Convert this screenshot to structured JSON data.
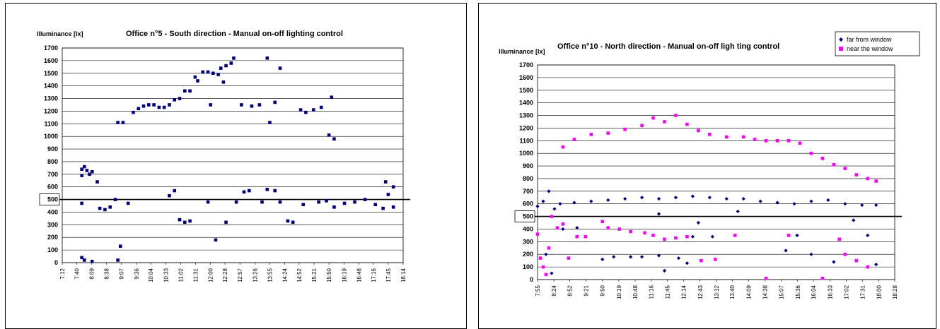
{
  "chart_data": [
    {
      "type": "scatter",
      "title": "Office n°5 - South direction - Manual on-off lighting control",
      "ylabel": "Illuminance [lx]",
      "xlabel": "",
      "ylim": [
        0,
        1700
      ],
      "ytick_step": 100,
      "grid": true,
      "threshold": 500,
      "threshold_label": "500",
      "x_ticks": [
        "7:12",
        "7:40",
        "8:09",
        "8:38",
        "9:07",
        "9:36",
        "10:04",
        "10:33",
        "11:02",
        "11:31",
        "12:00",
        "12:28",
        "12:57",
        "13:26",
        "13:55",
        "14:24",
        "14:52",
        "15:21",
        "15:50",
        "16:19",
        "16:48",
        "17:16",
        "17:45",
        "18:14"
      ],
      "legend": null,
      "series": [
        {
          "color": "#000080",
          "marker": "square",
          "points": [
            [
              "7:50",
              40
            ],
            [
              "7:50",
              470
            ],
            [
              "7:50",
              690
            ],
            [
              "7:50",
              740
            ],
            [
              "7:55",
              20
            ],
            [
              "7:55",
              760
            ],
            [
              "8:00",
              730
            ],
            [
              "8:05",
              700
            ],
            [
              "8:10",
              10
            ],
            [
              "8:10",
              720
            ],
            [
              "8:20",
              640
            ],
            [
              "8:25",
              430
            ],
            [
              "8:35",
              420
            ],
            [
              "8:45",
              440
            ],
            [
              "8:55",
              500
            ],
            [
              "9:00",
              20
            ],
            [
              "9:00",
              1110
            ],
            [
              "9:05",
              130
            ],
            [
              "9:10",
              1110
            ],
            [
              "9:20",
              470
            ],
            [
              "9:30",
              1190
            ],
            [
              "9:40",
              1220
            ],
            [
              "9:50",
              1240
            ],
            [
              "10:00",
              1250
            ],
            [
              "10:10",
              1250
            ],
            [
              "10:20",
              1230
            ],
            [
              "10:30",
              1230
            ],
            [
              "10:40",
              1250
            ],
            [
              "10:50",
              1290
            ],
            [
              "11:00",
              1300
            ],
            [
              "11:10",
              1360
            ],
            [
              "11:20",
              1360
            ],
            [
              "11:30",
              1470
            ],
            [
              "11:35",
              1440
            ],
            [
              "11:45",
              1510
            ],
            [
              "11:55",
              1510
            ],
            [
              "12:00",
              1250
            ],
            [
              "12:05",
              1500
            ],
            [
              "12:15",
              1490
            ],
            [
              "12:20",
              1540
            ],
            [
              "12:25",
              1430
            ],
            [
              "12:30",
              1560
            ],
            [
              "12:40",
              1580
            ],
            [
              "12:45",
              1620
            ],
            [
              "13:00",
              1250
            ],
            [
              "13:20",
              1240
            ],
            [
              "13:35",
              1250
            ],
            [
              "13:50",
              1620
            ],
            [
              "13:55",
              1110
            ],
            [
              "14:05",
              1270
            ],
            [
              "14:15",
              1540
            ],
            [
              "14:55",
              1210
            ],
            [
              "15:05",
              1190
            ],
            [
              "15:20",
              1210
            ],
            [
              "15:35",
              1230
            ],
            [
              "15:50",
              1010
            ],
            [
              "15:55",
              1310
            ],
            [
              "16:00",
              980
            ],
            [
              "10:40",
              530
            ],
            [
              "10:50",
              570
            ],
            [
              "11:00",
              340
            ],
            [
              "11:10",
              320
            ],
            [
              "11:20",
              330
            ],
            [
              "11:55",
              480
            ],
            [
              "12:10",
              180
            ],
            [
              "12:30",
              320
            ],
            [
              "12:50",
              480
            ],
            [
              "13:05",
              560
            ],
            [
              "13:15",
              570
            ],
            [
              "13:40",
              480
            ],
            [
              "13:50",
              580
            ],
            [
              "14:05",
              570
            ],
            [
              "14:15",
              480
            ],
            [
              "14:30",
              330
            ],
            [
              "14:40",
              320
            ],
            [
              "15:00",
              460
            ],
            [
              "15:30",
              480
            ],
            [
              "15:45",
              490
            ],
            [
              "16:00",
              440
            ],
            [
              "16:20",
              470
            ],
            [
              "16:40",
              480
            ],
            [
              "17:00",
              500
            ],
            [
              "17:20",
              460
            ],
            [
              "17:35",
              430
            ],
            [
              "17:45",
              540
            ],
            [
              "17:55",
              440
            ],
            [
              "17:55",
              600
            ],
            [
              "17:40",
              640
            ]
          ]
        }
      ]
    },
    {
      "type": "scatter",
      "title": "Office n°10 - North direction - Manual on-off ligh ting control",
      "ylabel": "Illuminance [lx]",
      "xlabel": "",
      "ylim": [
        0,
        1700
      ],
      "ytick_step": 100,
      "grid": true,
      "threshold": 500,
      "threshold_label": "500",
      "x_ticks": [
        "7:55",
        "8:24",
        "8:52",
        "9:21",
        "9:50",
        "10:19",
        "10:48",
        "11:16",
        "11:45",
        "12:14",
        "12:43",
        "13:12",
        "13:40",
        "14:09",
        "14:38",
        "15:07",
        "15:36",
        "16:04",
        "16:33",
        "17:02",
        "17:31",
        "18:00",
        "18:28"
      ],
      "legend": [
        {
          "name": "far from window",
          "color": "#000080",
          "marker": "diamond"
        },
        {
          "name": "near the window",
          "color": "#ff00ff",
          "marker": "square"
        }
      ],
      "series": [
        {
          "name": "far from window",
          "color": "#000080",
          "marker": "diamond",
          "points": [
            [
              "7:55",
              580
            ],
            [
              "8:05",
              620
            ],
            [
              "8:15",
              700
            ],
            [
              "8:25",
              560
            ],
            [
              "8:35",
              600
            ],
            [
              "9:00",
              610
            ],
            [
              "9:30",
              620
            ],
            [
              "10:00",
              630
            ],
            [
              "10:30",
              640
            ],
            [
              "11:00",
              650
            ],
            [
              "11:30",
              640
            ],
            [
              "12:00",
              650
            ],
            [
              "12:30",
              660
            ],
            [
              "13:00",
              650
            ],
            [
              "13:30",
              640
            ],
            [
              "14:00",
              640
            ],
            [
              "14:30",
              620
            ],
            [
              "15:00",
              610
            ],
            [
              "15:30",
              600
            ],
            [
              "16:00",
              620
            ],
            [
              "16:30",
              630
            ],
            [
              "17:00",
              600
            ],
            [
              "17:30",
              590
            ],
            [
              "17:55",
              590
            ],
            [
              "9:50",
              160
            ],
            [
              "10:10",
              180
            ],
            [
              "10:40",
              180
            ],
            [
              "11:00",
              180
            ],
            [
              "11:30",
              190
            ],
            [
              "11:40",
              70
            ],
            [
              "12:05",
              170
            ],
            [
              "12:20",
              130
            ],
            [
              "12:30",
              340
            ],
            [
              "12:40",
              450
            ],
            [
              "13:50",
              540
            ],
            [
              "15:15",
              230
            ],
            [
              "15:35",
              350
            ],
            [
              "16:00",
              200
            ],
            [
              "16:40",
              140
            ],
            [
              "17:15",
              470
            ],
            [
              "17:40",
              350
            ],
            [
              "17:55",
              120
            ],
            [
              "8:10",
              200
            ],
            [
              "8:20",
              50
            ],
            [
              "8:40",
              400
            ],
            [
              "9:05",
              410
            ],
            [
              "11:30",
              520
            ],
            [
              "13:05",
              340
            ]
          ]
        },
        {
          "name": "near the window",
          "color": "#ff00ff",
          "marker": "square",
          "points": [
            [
              "7:55",
              360
            ],
            [
              "8:00",
              170
            ],
            [
              "8:05",
              100
            ],
            [
              "8:10",
              40
            ],
            [
              "8:15",
              250
            ],
            [
              "8:20",
              500
            ],
            [
              "8:30",
              410
            ],
            [
              "8:40",
              440
            ],
            [
              "8:50",
              170
            ],
            [
              "9:05",
              340
            ],
            [
              "9:20",
              340
            ],
            [
              "9:50",
              460
            ],
            [
              "10:00",
              410
            ],
            [
              "10:20",
              400
            ],
            [
              "10:40",
              380
            ],
            [
              "11:05",
              370
            ],
            [
              "11:20",
              350
            ],
            [
              "11:40",
              320
            ],
            [
              "12:00",
              330
            ],
            [
              "12:20",
              340
            ],
            [
              "12:45",
              150
            ],
            [
              "13:10",
              160
            ],
            [
              "13:45",
              350
            ],
            [
              "14:40",
              10
            ],
            [
              "15:20",
              350
            ],
            [
              "16:20",
              10
            ],
            [
              "16:50",
              320
            ],
            [
              "17:00",
              200
            ],
            [
              "17:20",
              150
            ],
            [
              "17:40",
              100
            ],
            [
              "8:40",
              1050
            ],
            [
              "9:00",
              1110
            ],
            [
              "9:30",
              1150
            ],
            [
              "10:00",
              1160
            ],
            [
              "10:30",
              1190
            ],
            [
              "11:00",
              1220
            ],
            [
              "11:20",
              1280
            ],
            [
              "11:40",
              1250
            ],
            [
              "12:00",
              1300
            ],
            [
              "12:20",
              1230
            ],
            [
              "12:40",
              1180
            ],
            [
              "13:00",
              1150
            ],
            [
              "13:30",
              1130
            ],
            [
              "14:00",
              1130
            ],
            [
              "14:20",
              1110
            ],
            [
              "14:40",
              1100
            ],
            [
              "15:00",
              1100
            ],
            [
              "15:20",
              1100
            ],
            [
              "15:40",
              1080
            ],
            [
              "16:00",
              1000
            ],
            [
              "16:20",
              960
            ],
            [
              "16:40",
              910
            ],
            [
              "17:00",
              880
            ],
            [
              "17:20",
              830
            ],
            [
              "17:40",
              800
            ],
            [
              "17:55",
              780
            ]
          ]
        }
      ]
    }
  ]
}
